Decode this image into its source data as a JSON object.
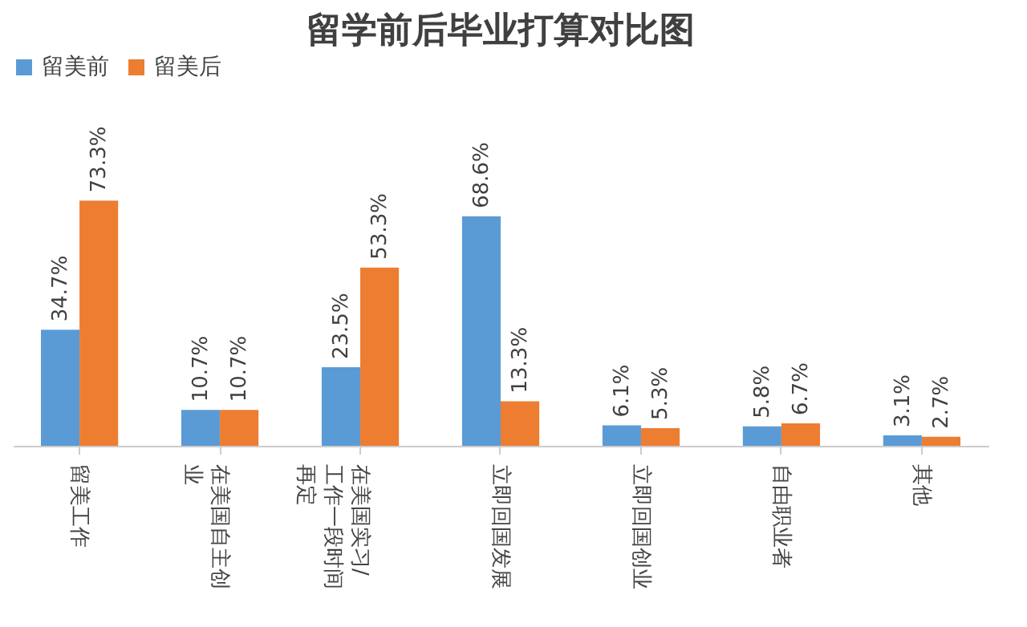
{
  "chart_data": {
    "type": "bar",
    "title": "留学前后毕业打算对比图",
    "categories": [
      "留美工作",
      "在美国自主创业",
      "在美国实习/工作一段时间再定",
      "立即回国发展",
      "立即回国创业",
      "自由职业者",
      "其他"
    ],
    "series": [
      {
        "name": "留美前",
        "color": "#5b9bd5",
        "values": [
          34.7,
          10.7,
          23.5,
          68.6,
          6.1,
          5.8,
          3.1
        ],
        "value_labels": [
          "34.7%",
          "10.7%",
          "23.5%",
          "68.6%",
          "6.1%",
          "5.8%",
          "3.1%"
        ]
      },
      {
        "name": "留美后",
        "color": "#ed7d31",
        "values": [
          73.3,
          10.7,
          53.3,
          13.3,
          5.3,
          6.7,
          2.7
        ],
        "value_labels": [
          "73.3%",
          "10.7%",
          "53.3%",
          "13.3%",
          "5.3%",
          "6.7%",
          "2.7%"
        ]
      }
    ],
    "legend": "top"
  }
}
